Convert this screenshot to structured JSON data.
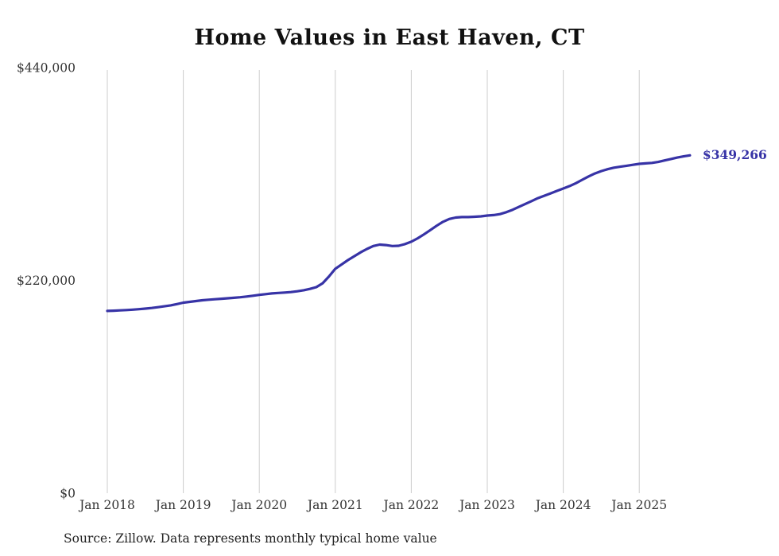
{
  "page": {
    "title": "Home Values in East Haven, CT"
  },
  "colors": {
    "line": "#3733a6",
    "grid": "#cccccc",
    "tick_text": "#333333",
    "end_label": "#3733a6"
  },
  "chart_data": {
    "type": "line",
    "title": "Home Values in East Haven, CT",
    "source": "Source: Zillow. Data represents monthly typical home value",
    "end_value_label": "$349,266",
    "end_value": 349266,
    "ylim": [
      0,
      440000
    ],
    "grid": "vertical-only",
    "legend": "none",
    "x_tick_labels": [
      "Jan 2018",
      "Jan 2019",
      "Jan 2020",
      "Jan 2021",
      "Jan 2022",
      "Jan 2023",
      "Jan 2024",
      "Jan 2025"
    ],
    "y_ticks": [
      {
        "label": "$0",
        "value": 0
      },
      {
        "label": "$220,000",
        "value": 220000
      },
      {
        "label": "$440,000",
        "value": 440000
      }
    ],
    "series": [
      {
        "name": "Typical home value",
        "start_month": "2018-01",
        "frequency": "monthly",
        "values": [
          188400,
          188700,
          189000,
          189300,
          189700,
          190200,
          190800,
          191500,
          192300,
          193200,
          194200,
          195500,
          197000,
          197800,
          198600,
          199400,
          200000,
          200500,
          201000,
          201500,
          202000,
          202600,
          203300,
          204100,
          205000,
          205800,
          206500,
          207000,
          207400,
          207900,
          208700,
          209800,
          211200,
          213000,
          217000,
          224000,
          232000,
          236500,
          241000,
          245000,
          249000,
          252500,
          255500,
          257000,
          256500,
          255500,
          255800,
          257500,
          260000,
          263500,
          267500,
          272000,
          276500,
          280500,
          283500,
          285000,
          285500,
          285500,
          285800,
          286200,
          287000,
          287500,
          288500,
          290500,
          293000,
          296000,
          299000,
          302000,
          305000,
          307500,
          310000,
          312500,
          315000,
          317500,
          320500,
          324000,
          327500,
          330500,
          333000,
          335000,
          336500,
          337500,
          338500,
          339500,
          340500,
          341000,
          341500,
          342500,
          344000,
          345500,
          347000,
          348200,
          349266
        ]
      }
    ]
  }
}
